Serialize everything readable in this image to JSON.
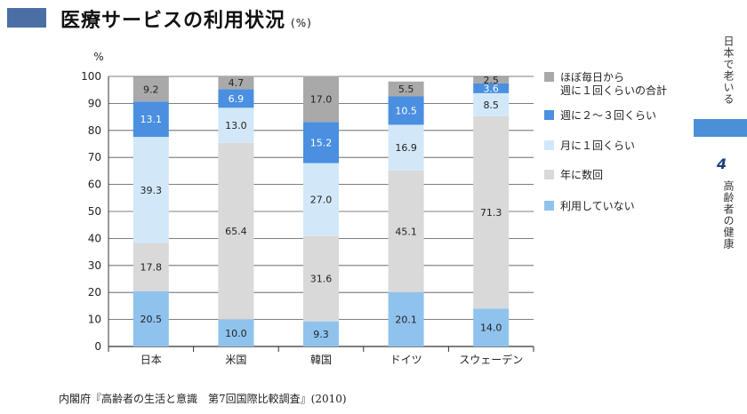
{
  "header": {
    "title": "医療サービスの利用状況",
    "unit": "(%)"
  },
  "side": {
    "top": "日本で老いる",
    "number": "4",
    "bottom": "高齢者の健康"
  },
  "source": "内閣府『高齢者の生活と意識　第7回国際比較調査』(2010)",
  "chart_data": {
    "type": "bar",
    "stacked": true,
    "ylabel": "%",
    "ylim": [
      0,
      100
    ],
    "yticks": [
      0,
      10,
      20,
      30,
      40,
      50,
      60,
      70,
      80,
      90,
      100
    ],
    "grid": true,
    "legend_position": "right",
    "categories": [
      "日本",
      "米国",
      "韓国",
      "ドイツ",
      "スウェーデン"
    ],
    "series": [
      {
        "name": "利用していない",
        "color": "#8fc3ee",
        "values": [
          20.5,
          10.0,
          9.3,
          20.1,
          14.0
        ]
      },
      {
        "name": "年に数回",
        "color": "#d9d9d9",
        "values": [
          17.8,
          65.4,
          31.6,
          45.1,
          71.3
        ]
      },
      {
        "name": "月に１回くらい",
        "color": "#d2e8f9",
        "values": [
          39.3,
          13.0,
          27.0,
          16.9,
          8.5
        ]
      },
      {
        "name": "週に２〜３回くらい",
        "color": "#4a8fe0",
        "values": [
          13.1,
          6.9,
          15.2,
          10.5,
          3.6
        ]
      },
      {
        "name": "ほぼ毎日から\n週に１回くらいの合計",
        "color": "#a9a9a9",
        "values": [
          9.2,
          4.7,
          17.0,
          5.5,
          2.5
        ]
      }
    ],
    "legend_order": [
      4,
      3,
      2,
      1,
      0
    ]
  }
}
